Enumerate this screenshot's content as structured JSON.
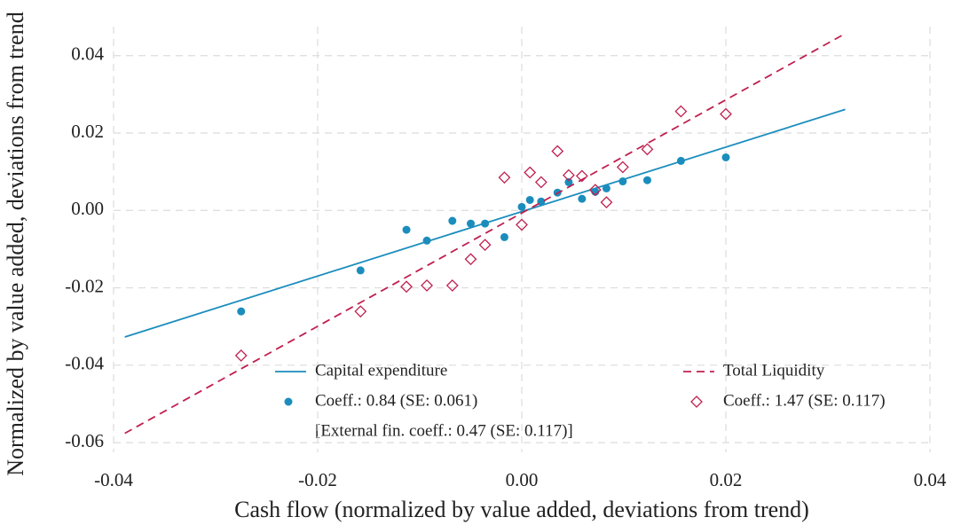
{
  "chart_data": {
    "type": "scatter",
    "x_label": "Cash flow (normalized by value added, deviations from trend)",
    "y_label": "Normalized by value added, deviations from trend",
    "xlim": [
      -0.04,
      0.04
    ],
    "ylim": [
      -0.0625,
      0.0475
    ],
    "xticks": [
      -0.04,
      -0.02,
      {
        "value": 0,
        "label": "0.00"
      },
      0.02,
      0.04
    ],
    "yticks": [
      -0.06,
      -0.04,
      -0.02,
      {
        "value": 0,
        "label": "0.00"
      },
      0.02,
      0.04
    ],
    "grid": true,
    "annotation": "[External fin. coeff.: 0.47 (SE: 0.117)]",
    "series": [
      {
        "name": "Capital expenditure",
        "color": "#1b8dbd",
        "mode": "line",
        "line_style": "solid",
        "x": [
          -0.0389,
          0.0317
        ],
        "values": [
          -0.0327,
          0.0261
        ]
      },
      {
        "name": "Coeff.: 0.84 (SE: 0.061)",
        "color": "#1b8dbd",
        "mode": "markers",
        "marker": "circle",
        "x": [
          -0.0275,
          -0.0158,
          -0.0113,
          -0.0093,
          -0.0068,
          -0.005,
          -0.0036,
          -0.0017,
          0.0,
          0.0008,
          0.0019,
          0.0035,
          0.0046,
          0.0059,
          0.0072,
          0.0083,
          0.0099,
          0.0123,
          0.0156,
          0.02
        ],
        "values": [
          -0.0261,
          -0.0155,
          -0.005,
          -0.0078,
          -0.0027,
          -0.0034,
          -0.0034,
          -0.0069,
          0.0009,
          0.0027,
          0.0023,
          0.0046,
          0.0073,
          0.003,
          0.0048,
          0.0057,
          0.0075,
          0.0078,
          0.0128,
          0.0137
        ]
      },
      {
        "name": "Total Liquidity",
        "color": "#c0204f",
        "mode": "line",
        "line_style": "dashed",
        "x": [
          -0.0389,
          0.0317
        ],
        "values": [
          -0.0576,
          0.0457
        ]
      },
      {
        "name": "Coeff.: 1.47 (SE: 0.117)",
        "color": "#c0204f",
        "mode": "markers",
        "marker": "diamond",
        "x": [
          -0.0275,
          -0.0158,
          -0.0113,
          -0.0093,
          -0.0068,
          -0.005,
          -0.0036,
          -0.0017,
          0.0,
          0.0008,
          0.0019,
          0.0035,
          0.0046,
          0.0059,
          0.0072,
          0.0083,
          0.0099,
          0.0123,
          0.0156,
          0.02
        ],
        "values": [
          -0.0375,
          -0.0261,
          -0.0197,
          -0.0194,
          -0.0194,
          -0.0126,
          -0.0089,
          0.0085,
          -0.0037,
          0.0098,
          0.0073,
          0.0153,
          0.0091,
          0.0089,
          0.0053,
          0.0021,
          0.0112,
          0.0158,
          0.0256,
          0.0249
        ]
      }
    ]
  }
}
